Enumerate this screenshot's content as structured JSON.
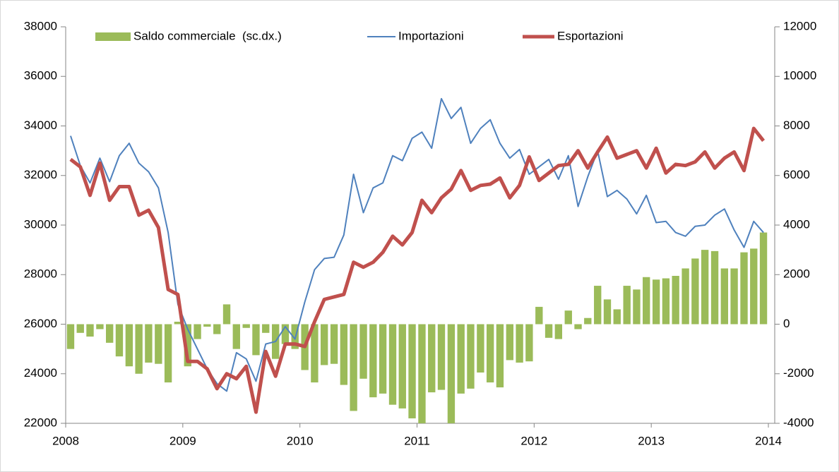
{
  "chart_data": {
    "type": "combo",
    "x": [
      2008.042,
      2008.125,
      2008.208,
      2008.292,
      2008.375,
      2008.458,
      2008.542,
      2008.625,
      2008.708,
      2008.792,
      2008.875,
      2008.958,
      2009.042,
      2009.125,
      2009.208,
      2009.292,
      2009.375,
      2009.458,
      2009.542,
      2009.625,
      2009.708,
      2009.792,
      2009.875,
      2009.958,
      2010.042,
      2010.125,
      2010.208,
      2010.292,
      2010.375,
      2010.458,
      2010.542,
      2010.625,
      2010.708,
      2010.792,
      2010.875,
      2010.958,
      2011.042,
      2011.125,
      2011.208,
      2011.292,
      2011.375,
      2011.458,
      2011.542,
      2011.625,
      2011.708,
      2011.792,
      2011.875,
      2011.958,
      2012.042,
      2012.125,
      2012.208,
      2012.292,
      2012.375,
      2012.458,
      2012.542,
      2012.625,
      2012.708,
      2012.792,
      2012.875,
      2012.958,
      2013.042,
      2013.125,
      2013.208,
      2013.292,
      2013.375,
      2013.458,
      2013.542,
      2013.625,
      2013.708,
      2013.792,
      2013.875,
      2013.958
    ],
    "xlim": [
      2008,
      2014
    ],
    "xticks": [
      2008,
      2009,
      2010,
      2011,
      2012,
      2013,
      2014
    ],
    "ylim": [
      22000,
      38000
    ],
    "yticks": [
      22000,
      24000,
      26000,
      28000,
      30000,
      32000,
      34000,
      36000,
      38000
    ],
    "y2lim": [
      -4000,
      12000
    ],
    "y2ticks": [
      -4000,
      -2000,
      0,
      2000,
      4000,
      6000,
      8000,
      10000,
      12000
    ],
    "legend": "top",
    "series": [
      {
        "name": "Saldo commerciale  (sc.dx.)",
        "type": "bar",
        "axis": "y2",
        "color": "#9bbb59",
        "values": [
          -1000,
          -350,
          -500,
          -200,
          -750,
          -1300,
          -1700,
          -2000,
          -1550,
          -1600,
          -2350,
          100,
          -1700,
          -600,
          -100,
          -400,
          800,
          -1000,
          -150,
          -1250,
          -350,
          -1400,
          -800,
          -1000,
          -1850,
          -2350,
          -1650,
          -1600,
          -2450,
          -3500,
          -2200,
          -2950,
          -2800,
          -3250,
          -3400,
          -3800,
          -4000,
          -2750,
          -2650,
          -4000,
          -2800,
          -2600,
          -1950,
          -2350,
          -2550,
          -1450,
          -1550,
          -1500,
          700,
          -550,
          -600,
          550,
          -200,
          250,
          1550,
          1000,
          600,
          1550,
          1400,
          1900,
          1800,
          1850,
          1950,
          2250,
          2650,
          3000,
          2950,
          2250,
          2250,
          2900,
          3050,
          3700
        ]
      },
      {
        "name": "Importazioni",
        "type": "line",
        "color": "#4f81bd",
        "width": 2,
        "values": [
          33600,
          32400,
          31700,
          32700,
          31750,
          32800,
          33300,
          32500,
          32150,
          31500,
          29700,
          26800,
          25800,
          25000,
          24200,
          23600,
          23300,
          24850,
          24600,
          23700,
          25200,
          25300,
          25900,
          25400,
          26900,
          28200,
          28650,
          28700,
          29600,
          32050,
          30500,
          31500,
          31700,
          32800,
          32600,
          33500,
          33750,
          33100,
          35100,
          34300,
          34750,
          33300,
          33900,
          34250,
          33300,
          32700,
          33050,
          32050,
          32350,
          32650,
          31850,
          32800,
          30750,
          31950,
          33000,
          31150,
          31400,
          31050,
          30450,
          31200,
          30100,
          30150,
          29700,
          29550,
          29950,
          30000,
          30400,
          30650,
          29800,
          29100,
          30150,
          29700
        ]
      },
      {
        "name": "Esportazioni",
        "type": "line",
        "color": "#c0504d",
        "width": 5,
        "values": [
          32650,
          32350,
          31200,
          32500,
          31000,
          31550,
          31550,
          30400,
          30600,
          29900,
          27400,
          27200,
          24500,
          24500,
          24200,
          23400,
          24000,
          23800,
          24300,
          22450,
          24900,
          23900,
          25200,
          25200,
          25100,
          26100,
          27000,
          27100,
          27200,
          28500,
          28300,
          28500,
          28900,
          29550,
          29200,
          29700,
          31000,
          30500,
          31100,
          31450,
          32200,
          31400,
          31600,
          31650,
          31900,
          31100,
          31600,
          32750,
          31800,
          32100,
          32400,
          32450,
          33000,
          32300,
          32950,
          33550,
          32700,
          32850,
          33000,
          32300,
          33100,
          32100,
          32450,
          32400,
          32550,
          32950,
          32300,
          32700,
          32950,
          32200,
          33900,
          33400
        ]
      }
    ]
  }
}
